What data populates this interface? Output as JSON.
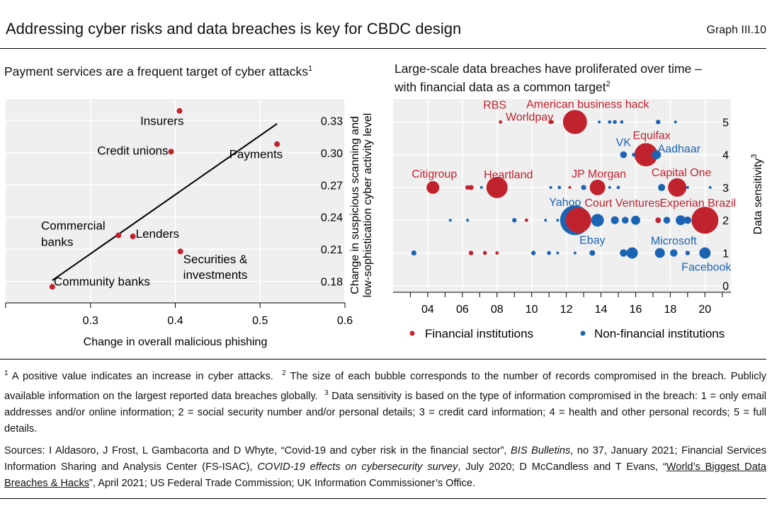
{
  "header": {
    "title": "Addressing cyber risks and data breaches is key for CBDC design",
    "graph_number": "Graph III.10"
  },
  "left_panel": {
    "subtitle": "Payment services are a frequent target of cyber attacks",
    "subtitle_note": "1"
  },
  "right_panel": {
    "subtitle_line1": "Large-scale data breaches have proliferated over time –",
    "subtitle_line2": "with financial data as a common target",
    "subtitle_note": "2"
  },
  "footnotes": {
    "n1_mark": "1",
    "n1": " A positive value indicates an increase in cyber attacks.",
    "n2_mark": "2",
    "n2": " The size of each bubble corresponds to the number of records compromised in the breach. Publicly available information on the largest reported data breaches globally.",
    "n3_mark": "3",
    "n3": " Data sensitivity is based on the type of information compromised in the breach: 1 = only email addresses and/or online information; 2 = social security number and/or personal details; 3 = credit card information; 4 = health and other personal records; 5 = full details."
  },
  "sources": {
    "pre": "Sources: I Aldasoro, J Frost, L Gambacorta and D Whyte, “Covid-19 and cyber risk in the financial sector”, ",
    "pub1": "BIS Bulletins",
    "mid1": ", no 37, January 2021; Financial Services Information Sharing and Analysis Center (FS-ISAC), ",
    "pub2": "COVID-19 effects on cybersecurity survey",
    "mid2": ", July 2020; D McCandless and T Evans, “",
    "link": "World’s Biggest Data Breaches & Hacks",
    "post": "”, April 2021; US Federal Trade Commission; UK Information Commissioner’s Office."
  },
  "colors": {
    "financial": "#c0232e",
    "non_financial": "#1c64b3",
    "line": "#000000",
    "plot_bg": "#efefef"
  },
  "chart_data": [
    {
      "type": "scatter",
      "xlabel": "Change in overall malicious phishing",
      "ylabel_line1": "Change in suspicious scanning and",
      "ylabel_line2": "low-sophistication cyber activity level",
      "xlim": [
        0.2,
        0.6
      ],
      "ylim": [
        0.16,
        0.35
      ],
      "x_ticks": [
        0.3,
        0.4,
        0.5,
        0.6
      ],
      "y_ticks": [
        0.18,
        0.21,
        0.24,
        0.27,
        0.3,
        0.33
      ],
      "grid": true,
      "points": [
        {
          "label": "Insurers",
          "x": 0.405,
          "y": 0.339
        },
        {
          "label": "Credit unions",
          "x": 0.395,
          "y": 0.301
        },
        {
          "label": "Payments",
          "x": 0.52,
          "y": 0.308
        },
        {
          "label_line1": "Commercial",
          "label_line2": "banks",
          "x": 0.333,
          "y": 0.223
        },
        {
          "label": "Lenders",
          "x": 0.35,
          "y": 0.222
        },
        {
          "label_line1": "Securities &",
          "label_line2": "investments",
          "x": 0.406,
          "y": 0.208
        },
        {
          "label": "Community banks",
          "x": 0.255,
          "y": 0.175
        }
      ],
      "trend_line": {
        "x": [
          0.255,
          0.52
        ],
        "y": [
          0.181,
          0.327
        ]
      }
    },
    {
      "type": "bubble",
      "ylabel": "Data sensitivity",
      "ylabel_note": "3",
      "xlim": [
        2,
        21.5
      ],
      "ylim": [
        -0.2,
        5.7
      ],
      "x_ticks": [
        4,
        6,
        8,
        10,
        12,
        14,
        16,
        18,
        20
      ],
      "x_tick_labels": [
        "04",
        "06",
        "08",
        "10",
        "12",
        "14",
        "16",
        "18",
        "20"
      ],
      "y_ticks": [
        0,
        1,
        2,
        3,
        4,
        5
      ],
      "grid": true,
      "legend": [
        "Financial institutions",
        "Non-financial institutions"
      ],
      "legend_position": "bottom",
      "labeled_breaches": [
        {
          "label": "RBS",
          "x": 8.2,
          "y": 5,
          "size": 1.2,
          "group": "financial"
        },
        {
          "label": "Worldpay",
          "x": 11.1,
          "y": 5,
          "size": 1.5,
          "group": "financial"
        },
        {
          "label": "American business hack",
          "x": 12.5,
          "y": 5,
          "size": 8.5,
          "group": "financial"
        },
        {
          "label": "VK",
          "x": 15.3,
          "y": 4,
          "size": 2.4,
          "group": "non_financial"
        },
        {
          "label": "Equifax",
          "x": 16.6,
          "y": 4,
          "size": 8.2,
          "group": "financial"
        },
        {
          "label": "Aadhaar",
          "x": 17.2,
          "y": 4,
          "size": 3.2,
          "group": "non_financial"
        },
        {
          "label": "Citigroup",
          "x": 4.3,
          "y": 3,
          "size": 4.5,
          "group": "financial"
        },
        {
          "label": "Heartland",
          "x": 8.0,
          "y": 3,
          "size": 7.5,
          "group": "financial"
        },
        {
          "label": "JP Morgan",
          "x": 13.8,
          "y": 3,
          "size": 5.5,
          "group": "financial"
        },
        {
          "label": "Capital One",
          "x": 18.4,
          "y": 3,
          "size": 6.5,
          "group": "financial"
        },
        {
          "label": "Yahoo",
          "x": 12.5,
          "y": 2,
          "size": 10.5,
          "group": "non_financial"
        },
        {
          "label": "Court Ventures",
          "x": 12.7,
          "y": 2,
          "size": 9.0,
          "group": "financial"
        },
        {
          "label": "Experian Brazil",
          "x": 20.0,
          "y": 2,
          "size": 9.5,
          "group": "financial"
        },
        {
          "label": "Ebay",
          "x": 13.5,
          "y": 1,
          "size": 2.0,
          "group": "non_financial"
        },
        {
          "label": "Microsoft",
          "x": 18.2,
          "y": 1,
          "size": 2.6,
          "group": "non_financial"
        },
        {
          "label": "Facebook",
          "x": 20.0,
          "y": 1,
          "size": 4.0,
          "group": "non_financial"
        }
      ],
      "other_breaches": [
        {
          "x": 11.2,
          "y": 5,
          "size": 1.0,
          "group": "financial"
        },
        {
          "x": 13.9,
          "y": 5,
          "size": 1.0,
          "group": "non_financial"
        },
        {
          "x": 14.5,
          "y": 5,
          "size": 1.2,
          "group": "non_financial"
        },
        {
          "x": 14.8,
          "y": 5,
          "size": 1.4,
          "group": "non_financial"
        },
        {
          "x": 15.2,
          "y": 5,
          "size": 1.2,
          "group": "non_financial"
        },
        {
          "x": 17.3,
          "y": 5,
          "size": 1.6,
          "group": "non_financial"
        },
        {
          "x": 18.3,
          "y": 5,
          "size": 1.0,
          "group": "non_financial"
        },
        {
          "x": 15.9,
          "y": 4,
          "size": 1.4,
          "group": "non_financial"
        },
        {
          "x": 6.3,
          "y": 3,
          "size": 1.6,
          "group": "financial"
        },
        {
          "x": 6.5,
          "y": 3,
          "size": 1.8,
          "group": "financial"
        },
        {
          "x": 7.1,
          "y": 3,
          "size": 1.0,
          "group": "non_financial"
        },
        {
          "x": 11.1,
          "y": 3,
          "size": 1.0,
          "group": "non_financial"
        },
        {
          "x": 11.6,
          "y": 3,
          "size": 1.2,
          "group": "non_financial"
        },
        {
          "x": 12.2,
          "y": 3,
          "size": 1.0,
          "group": "financial"
        },
        {
          "x": 13.0,
          "y": 3,
          "size": 1.8,
          "group": "non_financial"
        },
        {
          "x": 14.5,
          "y": 3,
          "size": 1.0,
          "group": "non_financial"
        },
        {
          "x": 15.0,
          "y": 3,
          "size": 1.2,
          "group": "non_financial"
        },
        {
          "x": 17.5,
          "y": 3,
          "size": 2.5,
          "group": "non_financial"
        },
        {
          "x": 19.0,
          "y": 3,
          "size": 1.0,
          "group": "non_financial"
        },
        {
          "x": 20.3,
          "y": 3,
          "size": 1.0,
          "group": "non_financial"
        },
        {
          "x": 5.3,
          "y": 2,
          "size": 1.0,
          "group": "non_financial"
        },
        {
          "x": 6.3,
          "y": 2,
          "size": 1.0,
          "group": "non_financial"
        },
        {
          "x": 9.0,
          "y": 2,
          "size": 1.6,
          "group": "non_financial"
        },
        {
          "x": 9.7,
          "y": 2,
          "size": 1.2,
          "group": "financial"
        },
        {
          "x": 10.8,
          "y": 2,
          "size": 1.0,
          "group": "non_financial"
        },
        {
          "x": 11.5,
          "y": 2,
          "size": 1.0,
          "group": "non_financial"
        },
        {
          "x": 13.8,
          "y": 2,
          "size": 4.5,
          "group": "non_financial"
        },
        {
          "x": 14.8,
          "y": 2,
          "size": 2.8,
          "group": "non_financial"
        },
        {
          "x": 15.4,
          "y": 2,
          "size": 2.4,
          "group": "non_financial"
        },
        {
          "x": 16.0,
          "y": 2,
          "size": 3.2,
          "group": "non_financial"
        },
        {
          "x": 17.3,
          "y": 2,
          "size": 2.0,
          "group": "financial"
        },
        {
          "x": 17.8,
          "y": 2,
          "size": 2.4,
          "group": "non_financial"
        },
        {
          "x": 18.6,
          "y": 2,
          "size": 3.5,
          "group": "non_financial"
        },
        {
          "x": 19.0,
          "y": 2,
          "size": 2.6,
          "group": "non_financial"
        },
        {
          "x": 3.2,
          "y": 1,
          "size": 1.8,
          "group": "non_financial"
        },
        {
          "x": 6.5,
          "y": 1,
          "size": 1.6,
          "group": "financial"
        },
        {
          "x": 7.3,
          "y": 1,
          "size": 1.4,
          "group": "financial"
        },
        {
          "x": 8.0,
          "y": 1,
          "size": 1.2,
          "group": "financial"
        },
        {
          "x": 10.1,
          "y": 1,
          "size": 1.6,
          "group": "non_financial"
        },
        {
          "x": 11.0,
          "y": 1,
          "size": 1.4,
          "group": "non_financial"
        },
        {
          "x": 11.5,
          "y": 1,
          "size": 1.0,
          "group": "non_financial"
        },
        {
          "x": 12.5,
          "y": 1,
          "size": 1.0,
          "group": "non_financial"
        },
        {
          "x": 15.3,
          "y": 1,
          "size": 2.6,
          "group": "non_financial"
        },
        {
          "x": 15.8,
          "y": 1,
          "size": 4.0,
          "group": "non_financial"
        },
        {
          "x": 17.4,
          "y": 1,
          "size": 3.5,
          "group": "non_financial"
        },
        {
          "x": 19.0,
          "y": 1,
          "size": 1.6,
          "group": "non_financial"
        }
      ]
    }
  ]
}
